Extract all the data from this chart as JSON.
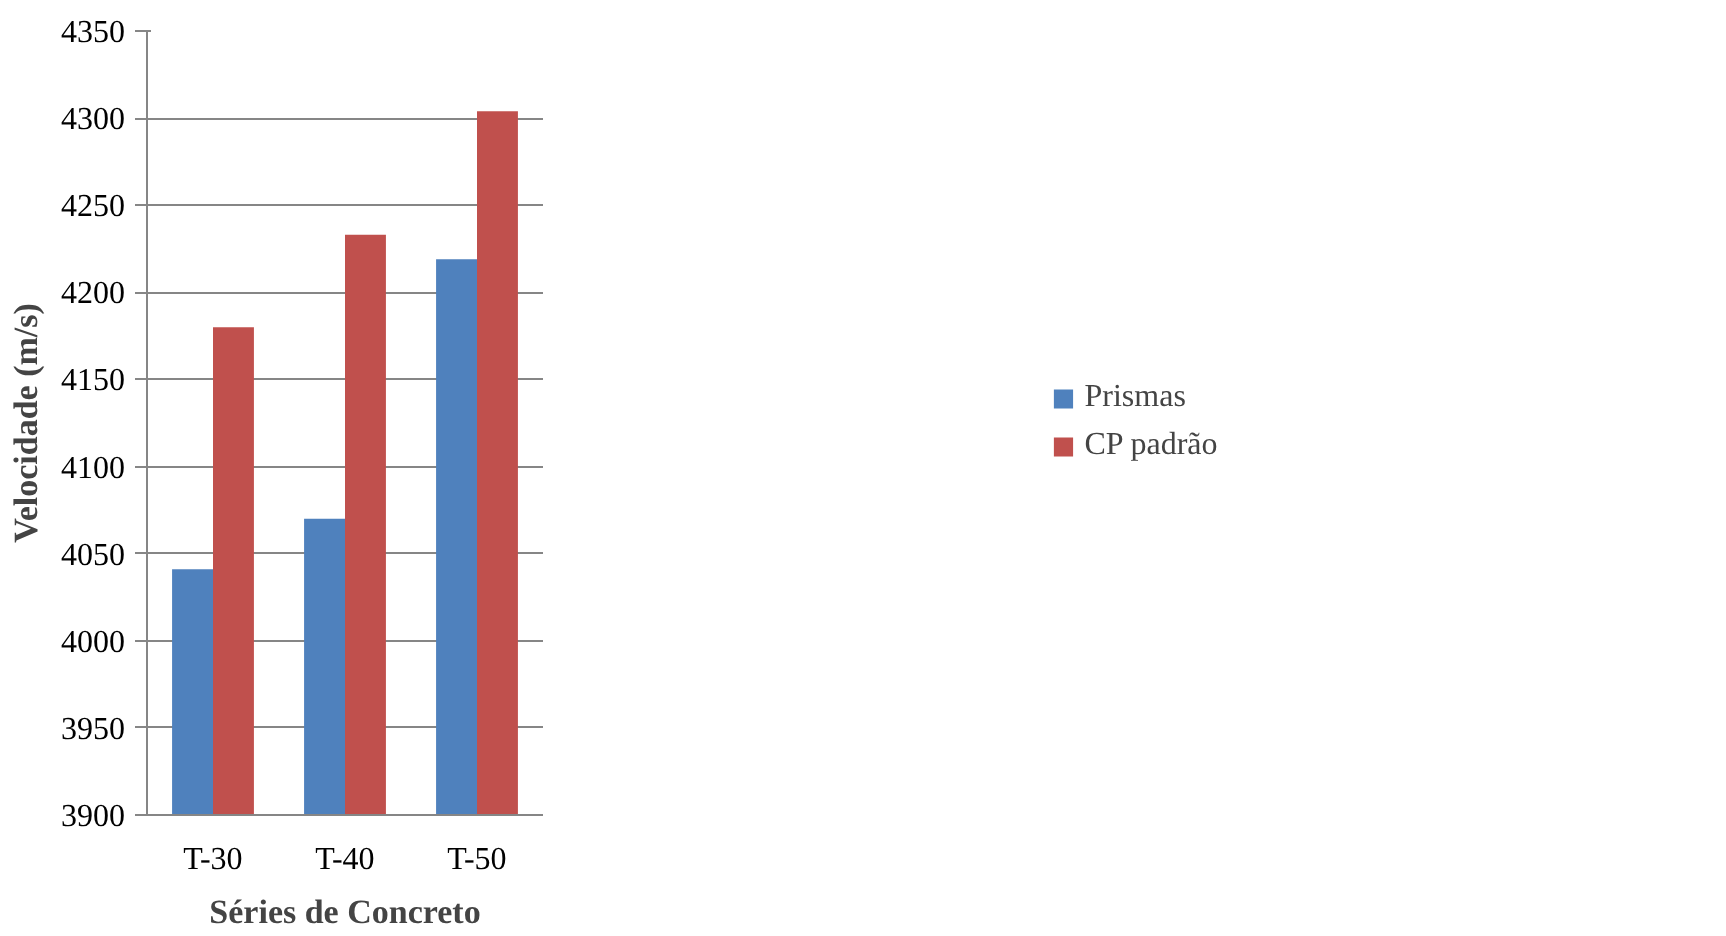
{
  "chart_data": {
    "type": "bar",
    "xlabel": "Séries de Concreto",
    "ylabel": "Velocidade (m/s)",
    "categories": [
      "T-30",
      "T-40",
      "T-50"
    ],
    "series": [
      {
        "name": "Prismas",
        "color": "#4f81bd",
        "values": [
          4041,
          4070,
          4219
        ]
      },
      {
        "name": "CP padrão",
        "color": "#c0504d",
        "values": [
          4180,
          4233,
          4304
        ]
      }
    ],
    "ylim": [
      3900,
      4350
    ],
    "yticks": [
      3900,
      3950,
      4000,
      4050,
      4100,
      4150,
      4200,
      4250,
      4300,
      4350
    ],
    "grid": "y",
    "legend": "right"
  }
}
